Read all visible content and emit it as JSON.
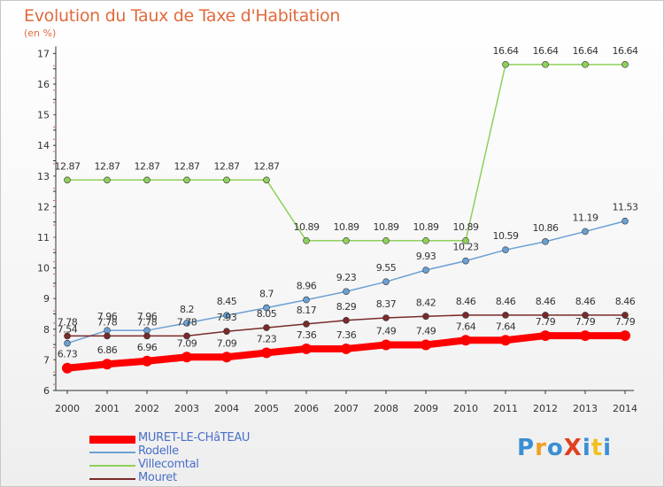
{
  "title": "Evolution du Taux de Taxe d'Habitation",
  "subtitle": "(en %)",
  "chart_data": {
    "type": "line",
    "title": "Evolution du Taux de Taxe d'Habitation",
    "subtitle": "(en %)",
    "x": [
      2000,
      2001,
      2002,
      2003,
      2004,
      2005,
      2006,
      2007,
      2008,
      2009,
      2010,
      2011,
      2012,
      2013,
      2014
    ],
    "ylim": [
      6,
      17
    ],
    "yticks": [
      6,
      7,
      8,
      9,
      10,
      11,
      12,
      13,
      14,
      15,
      16,
      17
    ],
    "grid": false,
    "legend_position": "bottom-left",
    "series": [
      {
        "name": "MURET-LE-CHâTEAU",
        "color": "#ff0000",
        "values": [
          6.73,
          6.86,
          6.96,
          7.09,
          7.09,
          7.23,
          7.36,
          7.36,
          7.49,
          7.49,
          7.64,
          7.64,
          7.79,
          7.79,
          7.79
        ]
      },
      {
        "name": "Rodelle",
        "color": "#6aa0d4",
        "values": [
          7.54,
          7.96,
          7.96,
          8.2,
          8.45,
          8.7,
          8.96,
          9.23,
          9.55,
          9.93,
          10.23,
          10.59,
          10.86,
          11.19,
          11.53
        ]
      },
      {
        "name": "Villecomtal",
        "color": "#8fd05a",
        "values": [
          12.87,
          12.87,
          12.87,
          12.87,
          12.87,
          12.87,
          10.89,
          10.89,
          10.89,
          10.89,
          10.89,
          16.64,
          16.64,
          16.64,
          16.64
        ]
      },
      {
        "name": "Mouret",
        "color": "#7a2a2a",
        "values": [
          7.78,
          7.78,
          7.78,
          7.78,
          7.93,
          8.05,
          8.17,
          8.29,
          8.37,
          8.42,
          8.46,
          8.46,
          8.46,
          8.46,
          8.46
        ]
      }
    ],
    "labels": {
      "MURET-LE-CHâTEAU": [
        "6.73",
        "6.86",
        "6.96",
        "7.09",
        "7.09",
        "7.23",
        "7.36",
        "7.36",
        "7.49",
        "7.49",
        "7.64",
        "7.64",
        "7.79",
        "7.79",
        "7.79"
      ],
      "Rodelle": [
        "7.54",
        "7.96",
        "7.96",
        "8.2",
        "8.45",
        "8.7",
        "8.96",
        "9.23",
        "9.55",
        "9.93",
        "10.23",
        "10.59",
        "10.86",
        "11.19",
        "11.53"
      ],
      "Villecomtal": [
        "12.87",
        "12.87",
        "12.87",
        "12.87",
        "12.87",
        "12.87",
        "10.89",
        "10.89",
        "10.89",
        "10.89",
        "10.89",
        "16.64",
        "16.64",
        "16.64",
        "16.64"
      ],
      "Mouret": [
        "7.78",
        "7.78",
        "7.78",
        "7.78",
        "7.93",
        "8.05",
        "8.17",
        "8.29",
        "8.37",
        "8.42",
        "8.46",
        "8.46",
        "8.46",
        "8.46",
        "8.46"
      ]
    }
  },
  "legend": [
    {
      "label": "MURET-LE-CHâTEAU",
      "color": "#ff0000"
    },
    {
      "label": "Rodelle",
      "color": "#6aa0d4"
    },
    {
      "label": "Villecomtal",
      "color": "#8fd05a"
    },
    {
      "label": "Mouret",
      "color": "#7a2a2a"
    }
  ],
  "logo": {
    "text": "ProXiti"
  }
}
